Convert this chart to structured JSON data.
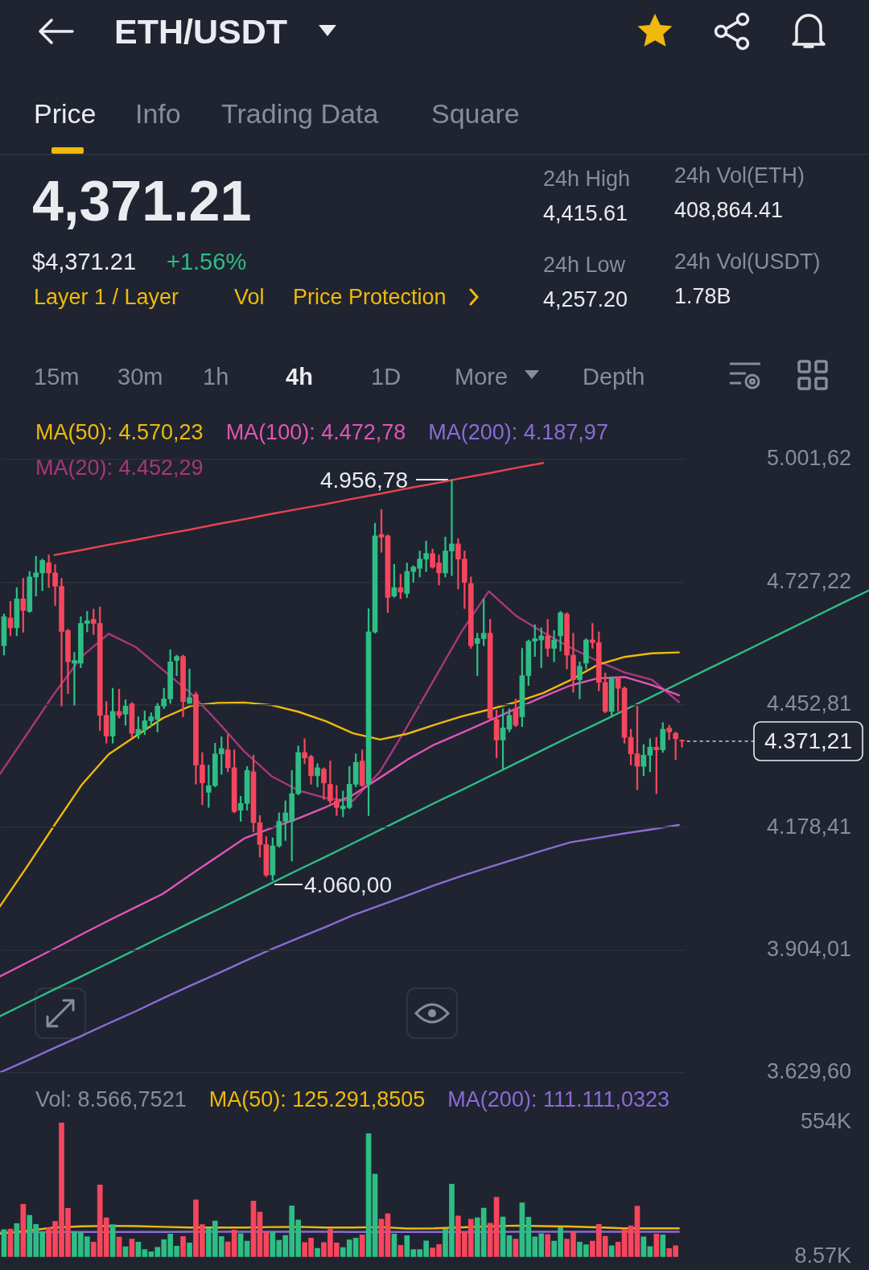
{
  "chart_data": [
    {
      "type": "candlestick",
      "title": "ETH/USDT",
      "annotations": [
        "Price",
        "Info",
        "Trading Data",
        "Square",
        "4,371.21",
        "$4,371.21",
        "+1.56%",
        "Layer 1 / Layer",
        "Vol",
        "Price Protection",
        "24h High",
        "4,415.61",
        "24h Low",
        "4,257.20",
        "24h Vol(ETH)",
        "408,864.41",
        "24h Vol(USDT)",
        "1.78B",
        "15m",
        "30m",
        "1h",
        "4h",
        "1D",
        "More",
        "Depth",
        "4.956,78",
        "4.060,00"
      ],
      "categories": [
        null,
        null,
        null,
        null,
        null,
        null,
        null,
        null,
        null,
        null,
        null,
        null,
        null,
        null,
        null,
        null,
        null,
        null,
        null,
        null,
        null,
        null,
        null,
        null,
        null,
        null,
        null,
        null,
        null,
        null,
        null,
        null,
        null,
        null,
        null,
        null,
        null,
        null,
        null,
        null,
        null,
        null,
        null,
        null,
        null,
        null,
        null,
        null,
        null,
        null,
        null,
        null,
        null,
        null,
        null,
        null,
        null,
        null,
        null,
        null,
        null,
        null,
        null,
        null,
        null,
        null,
        null,
        null,
        null,
        null,
        null,
        null,
        null,
        null,
        null,
        null,
        null,
        null,
        null,
        null,
        null,
        null,
        null,
        null,
        null,
        null,
        null,
        null,
        null,
        null,
        null,
        null,
        null,
        null,
        null,
        null,
        null,
        null,
        null,
        null,
        null,
        null,
        null,
        null,
        null,
        null,
        null
      ],
      "series": [
        {
          "ohlc": [
            [
              4585,
              4656,
              4564,
              4650
            ],
            [
              4647,
              4684,
              4607,
              4625
            ],
            [
              4625,
              4715,
              4607,
              4690
            ],
            [
              4690,
              4736,
              4615,
              4664
            ],
            [
              4662,
              4751,
              4659,
              4739
            ],
            [
              4739,
              4785,
              4696,
              4748
            ],
            [
              4748,
              4779,
              4708,
              4776
            ],
            [
              4771,
              4788,
              4715,
              4748
            ],
            [
              4748,
              4767,
              4675,
              4718
            ],
            [
              4718,
              4736,
              4450,
              4617
            ],
            [
              4619,
              4622,
              4478,
              4549
            ],
            [
              4546,
              4570,
              4452,
              4552
            ],
            [
              4546,
              4650,
              4536,
              4635
            ],
            [
              4635,
              4662,
              4616,
              4641
            ],
            [
              4644,
              4667,
              4610,
              4635
            ],
            [
              4635,
              4672,
              4395,
              4429
            ],
            [
              4429,
              4460,
              4367,
              4383
            ],
            [
              4383,
              4490,
              4367,
              4438
            ],
            [
              4438,
              4488,
              4423,
              4429
            ],
            [
              4432,
              4464,
              4407,
              4450
            ],
            [
              4455,
              4458,
              4380,
              4389
            ],
            [
              4386,
              4426,
              4377,
              4398
            ],
            [
              4398,
              4439,
              4386,
              4417
            ],
            [
              4417,
              4435,
              4404,
              4426
            ],
            [
              4420,
              4456,
              4392,
              4450
            ],
            [
              4450,
              4490,
              4444,
              4466
            ],
            [
              4466,
              4576,
              4456,
              4549
            ],
            [
              4552,
              4564,
              4518,
              4561
            ],
            [
              4561,
              4564,
              4426,
              4460
            ],
            [
              4456,
              4533,
              4456,
              4469
            ],
            [
              4476,
              4481,
              4275,
              4318
            ],
            [
              4318,
              4346,
              4229,
              4278
            ],
            [
              4257,
              4318,
              4223,
              4272
            ],
            [
              4272,
              4367,
              4269,
              4343
            ],
            [
              4343,
              4381,
              4297,
              4355
            ],
            [
              4352,
              4386,
              4303,
              4312
            ],
            [
              4312,
              4352,
              4211,
              4214
            ],
            [
              4217,
              4248,
              4192,
              4232
            ],
            [
              4232,
              4315,
              4217,
              4306
            ],
            [
              4303,
              4340,
              4168,
              4189
            ],
            [
              4189,
              4205,
              4112,
              4140
            ],
            [
              4140,
              4158,
              4068,
              4072
            ],
            [
              4072,
              4155,
              4060.0,
              4137
            ],
            [
              4137,
              4211,
              4134,
              4192
            ],
            [
              4192,
              4238,
              4149,
              4211
            ],
            [
              4192,
              4306,
              4103,
              4254
            ],
            [
              4254,
              4361,
              4251,
              4346
            ],
            [
              4346,
              4377,
              4321,
              4334
            ],
            [
              4337,
              4340,
              4275,
              4294
            ],
            [
              4294,
              4321,
              4269,
              4312
            ],
            [
              4309,
              4312,
              4241,
              4278
            ],
            [
              4275,
              4327,
              4232,
              4238
            ],
            [
              4238,
              4272,
              4205,
              4223
            ],
            [
              4220,
              4260,
              4202,
              4226
            ],
            [
              4223,
              4315,
              4220,
              4275
            ],
            [
              4275,
              4343,
              4269,
              4324
            ],
            [
              4327,
              4352,
              4270,
              4272
            ],
            [
              4275,
              4668,
              4205,
              4616
            ],
            [
              4616,
              4859,
              4613,
              4831
            ],
            [
              4834,
              4890,
              4794,
              4828
            ],
            [
              4831,
              4833,
              4659,
              4693
            ],
            [
              4696,
              4767,
              4693,
              4715
            ],
            [
              4715,
              4745,
              4690,
              4705
            ],
            [
              4702,
              4770,
              4693,
              4751
            ],
            [
              4751,
              4764,
              4727,
              4761
            ],
            [
              4758,
              4797,
              4739,
              4779
            ],
            [
              4779,
              4819,
              4751,
              4791
            ],
            [
              4791,
              4801,
              4758,
              4761
            ],
            [
              4770,
              4788,
              4721,
              4748
            ],
            [
              4748,
              4828,
              4739,
              4797
            ],
            [
              4797,
              4956.78,
              4742,
              4813
            ],
            [
              4813,
              4825,
              4712,
              4779
            ],
            [
              4779,
              4797,
              4668,
              4727
            ],
            [
              4724,
              4739,
              4579,
              4585
            ],
            [
              4590,
              4613,
              4518,
              4601
            ],
            [
              4601,
              4690,
              4585,
              4613
            ],
            [
              4613,
              4644,
              4417,
              4423
            ],
            [
              4420,
              4441,
              4334,
              4374
            ],
            [
              4374,
              4444,
              4309,
              4401
            ],
            [
              4398,
              4444,
              4392,
              4429
            ],
            [
              4444,
              4466,
              4404,
              4407
            ],
            [
              4426,
              4579,
              4404,
              4518
            ],
            [
              4518,
              4598,
              4496,
              4595
            ],
            [
              4595,
              4632,
              4561,
              4601
            ],
            [
              4598,
              4625,
              4536,
              4607
            ],
            [
              4607,
              4644,
              4561,
              4579
            ],
            [
              4579,
              4619,
              4549,
              4598
            ],
            [
              4607,
              4662,
              4573,
              4659
            ],
            [
              4656,
              4659,
              4533,
              4564
            ],
            [
              4564,
              4613,
              4481,
              4509
            ],
            [
              4509,
              4549,
              4466,
              4539
            ],
            [
              4546,
              4601,
              4533,
              4598
            ],
            [
              4598,
              4635,
              4579,
              4592
            ],
            [
              4592,
              4616,
              4484,
              4503
            ],
            [
              4503,
              4524,
              4435,
              4438
            ],
            [
              4438,
              4515,
              4429,
              4512
            ],
            [
              4512,
              4515,
              4438,
              4490
            ],
            [
              4490,
              4493,
              4367,
              4380
            ],
            [
              4380,
              4398,
              4318,
              4343
            ],
            [
              4343,
              4450,
              4263,
              4315
            ],
            [
              4315,
              4364,
              4294,
              4340
            ],
            [
              4340,
              4377,
              4303,
              4358
            ],
            [
              4358,
              4380,
              4254,
              4352
            ],
            [
              4352,
              4413,
              4346,
              4398
            ],
            [
              4401,
              4407,
              4374,
              4392
            ],
            [
              4389,
              4392,
              4330,
              4377
            ],
            [
              4372,
              4374,
              4358,
              4371.21
            ]
          ],
          "colors": [
            "#2ebd85",
            "#f6465d",
            "#2ebd85",
            "#f6465d",
            "#2ebd85",
            "#2ebd85",
            "#2ebd85",
            "#f6465d",
            "#f6465d",
            "#f6465d",
            "#f6465d",
            "#2ebd85",
            "#2ebd85",
            "#2ebd85",
            "#f6465d",
            "#f6465d",
            "#f6465d",
            "#2ebd85",
            "#f6465d",
            "#2ebd85",
            "#f6465d",
            "#2ebd85",
            "#2ebd85",
            "#2ebd85",
            "#2ebd85",
            "#2ebd85",
            "#2ebd85",
            "#2ebd85",
            "#f6465d",
            "#2ebd85",
            "#f6465d",
            "#f6465d",
            "#2ebd85",
            "#2ebd85",
            "#2ebd85",
            "#f6465d",
            "#f6465d",
            "#2ebd85",
            "#2ebd85",
            "#f6465d",
            "#f6465d",
            "#f6465d",
            "#2ebd85",
            "#2ebd85",
            "#2ebd85",
            "#2ebd85",
            "#2ebd85",
            "#f6465d",
            "#f6465d",
            "#2ebd85",
            "#f6465d",
            "#f6465d",
            "#f6465d",
            "#2ebd85",
            "#2ebd85",
            "#2ebd85",
            "#f6465d",
            "#2ebd85",
            "#2ebd85",
            "#f6465d",
            "#f6465d",
            "#2ebd85",
            "#f6465d",
            "#2ebd85",
            "#2ebd85",
            "#2ebd85",
            "#2ebd85",
            "#f6465d",
            "#f6465d",
            "#2ebd85",
            "#2ebd85",
            "#f6465d",
            "#f6465d",
            "#f6465d",
            "#2ebd85",
            "#2ebd85",
            "#f6465d",
            "#f6465d",
            "#2ebd85",
            "#2ebd85",
            "#f6465d",
            "#2ebd85",
            "#2ebd85",
            "#2ebd85",
            "#2ebd85",
            "#f6465d",
            "#2ebd85",
            "#2ebd85",
            "#f6465d",
            "#f6465d",
            "#2ebd85",
            "#2ebd85",
            "#f6465d",
            "#f6465d",
            "#f6465d",
            "#2ebd85",
            "#f6465d",
            "#f6465d",
            "#f6465d",
            "#f6465d",
            "#2ebd85",
            "#2ebd85",
            "#f6465d",
            "#2ebd85",
            "#f6465d",
            "#f6465d",
            "#f6465d"
          ]
        }
      ],
      "ref_lines": [
        {
          "axis": "y",
          "value": 4371.21,
          "label": "4.371,21",
          "color": "#c8ccd2",
          "line_style": "dashed"
        }
      ],
      "ylim": [
        3629.6,
        5001.62
      ],
      "yticks": [
        {
          "value": 5001.62,
          "label": "5.001,62"
        },
        {
          "value": 4727.22,
          "label": "4.727,22"
        },
        {
          "value": 4452.81,
          "label": "4.452,81"
        },
        {
          "value": 4178.41,
          "label": "4.178,41"
        },
        {
          "value": 3904.01,
          "label": "3.904,01"
        },
        {
          "value": 3629.6,
          "label": "3.629,60"
        }
      ],
      "tick_labels": "y",
      "grid": "y"
    },
    {
      "type": "line",
      "series": [
        {
          "name": "MA(50): 4.570,23",
          "color": "#f0b90b",
          "values": [
            4002,
            4091,
            4183,
            4273,
            4342,
            4383,
            4423,
            4450,
            4457,
            4458,
            4452,
            4437,
            4416,
            4389,
            4375,
            4388,
            4408,
            4427,
            4442,
            4459,
            4479,
            4508,
            4542,
            4560,
            4568,
            4570,
            null,
            null,
            null,
            null,
            null,
            null,
            null
          ]
        },
        {
          "name": "MA(100): 4.472,78",
          "color": "#e255b6",
          "values": [
            3845,
            3876,
            3907,
            3939,
            3970,
            4000,
            4030,
            4072,
            4113,
            4154,
            4177,
            4199,
            4224,
            4251,
            4290,
            4330,
            4364,
            4390,
            4417,
            4444,
            4471,
            4496,
            4512,
            4515,
            4497,
            4474,
            null,
            null,
            null,
            null,
            null,
            null,
            null
          ]
        },
        {
          "name": "MA(200): 4.187,97",
          "color": "#8c6bd6",
          "values": [
            3630,
            3657,
            3685,
            3712,
            3740,
            3767,
            3796,
            3824,
            3851,
            3879,
            3906,
            3931,
            3956,
            3982,
            4004,
            4026,
            4049,
            4070,
            4089,
            4108,
            4127,
            4145,
            4155,
            4165,
            4174,
            4184,
            null,
            null,
            null,
            null,
            null,
            null,
            null
          ]
        },
        {
          "name": "MA(20): 4.452,29",
          "color": "#a8377a",
          "values": [
            4298,
            4388,
            4478,
            4560,
            4612,
            4582,
            4531,
            4480,
            4416,
            4348,
            4293,
            4261,
            4244,
            4238,
            4304,
            4405,
            4511,
            4617,
            4707,
            4652,
            4615,
            4581,
            4551,
            4525,
            4509,
            4459,
            null,
            null,
            null,
            null,
            null,
            null,
            null
          ]
        },
        {
          "color": "#e8434f",
          "values": [
            null,
            null,
            4788,
            4799,
            4811,
            4822,
            4834,
            4845,
            4857,
            4868,
            4880,
            4891,
            4902,
            4914,
            4925,
            4937,
            4948,
            4960,
            4971,
            4983,
            4994,
            null,
            null,
            null,
            null,
            null,
            null,
            null,
            null,
            null,
            null,
            null,
            null
          ]
        },
        {
          "color": "#2fbd85",
          "values": [
            3756,
            3786,
            3816,
            3845,
            3875,
            3905,
            3935,
            3965,
            3994,
            4024,
            4054,
            4084,
            4113,
            4143,
            4173,
            4203,
            4233,
            4262,
            4292,
            4322,
            4352,
            4382,
            4411,
            4441,
            4471,
            4501,
            4531,
            4560,
            4590,
            4620,
            4650,
            4680,
            4709
          ]
        }
      ],
      "categories": [
        null,
        null,
        null,
        null,
        null,
        null,
        null,
        null,
        null,
        null,
        null,
        null,
        null,
        null,
        null,
        null,
        null,
        null,
        null,
        null,
        null,
        null,
        null,
        null,
        null,
        null,
        null,
        null,
        null,
        null,
        null,
        null,
        null
      ],
      "ylim": [
        3629.6,
        5001.62
      ],
      "tick_labels": false
    },
    {
      "type": "bar",
      "categories": [
        null,
        null,
        null,
        null,
        null,
        null,
        null,
        null,
        null,
        null,
        null,
        null,
        null,
        null,
        null,
        null,
        null,
        null,
        null,
        null,
        null,
        null,
        null,
        null,
        null,
        null,
        null,
        null,
        null,
        null,
        null,
        null,
        null,
        null,
        null,
        null,
        null,
        null,
        null,
        null,
        null,
        null,
        null,
        null,
        null,
        null,
        null,
        null,
        null,
        null,
        null,
        null,
        null,
        null,
        null,
        null,
        null,
        null,
        null,
        null,
        null,
        null,
        null,
        null,
        null,
        null,
        null,
        null,
        null,
        null,
        null,
        null,
        null,
        null,
        null,
        null,
        null,
        null,
        null,
        null,
        null,
        null,
        null,
        null,
        null,
        null,
        null,
        null,
        null,
        null,
        null,
        null,
        null,
        null,
        null,
        null,
        null,
        null,
        null,
        null,
        null,
        null,
        null,
        null,
        null,
        null,
        null
      ],
      "values": [
        120,
        122,
        144,
        223,
        178,
        141,
        111,
        126,
        153,
        554,
        206,
        111,
        107,
        91,
        69,
        301,
        168,
        140,
        89,
        50,
        81,
        69,
        39,
        30,
        48,
        79,
        102,
        53,
        92,
        66,
        241,
        140,
        125,
        155,
        92,
        70,
        118,
        103,
        73,
        236,
        191,
        109,
        109,
        76,
        96,
        216,
        159,
        67,
        85,
        44,
        67,
        122,
        66,
        47,
        78,
        85,
        98,
        510,
        345,
        162,
        184,
        102,
        56,
        95,
        39,
        39,
        74,
        45,
        59,
        122,
        304,
        175,
        109,
        162,
        168,
        207,
        146,
        251,
        171,
        95,
        81,
        228,
        170,
        90,
        103,
        100,
        73,
        128,
        81,
        109,
        69,
        58,
        73,
        141,
        93,
        54,
        69,
        120,
        135,
        215,
        90,
        51,
        102,
        98,
        43,
        54,
        null
      ],
      "colors": [
        "#2ebd85",
        "#f6465d",
        "#2ebd85",
        "#f6465d",
        "#2ebd85",
        "#2ebd85",
        "#2ebd85",
        "#f6465d",
        "#f6465d",
        "#f6465d",
        "#f6465d",
        "#2ebd85",
        "#2ebd85",
        "#2ebd85",
        "#f6465d",
        "#f6465d",
        "#f6465d",
        "#2ebd85",
        "#f6465d",
        "#2ebd85",
        "#f6465d",
        "#2ebd85",
        "#2ebd85",
        "#2ebd85",
        "#2ebd85",
        "#2ebd85",
        "#2ebd85",
        "#2ebd85",
        "#f6465d",
        "#2ebd85",
        "#f6465d",
        "#f6465d",
        "#2ebd85",
        "#2ebd85",
        "#2ebd85",
        "#f6465d",
        "#f6465d",
        "#2ebd85",
        "#2ebd85",
        "#f6465d",
        "#f6465d",
        "#f6465d",
        "#2ebd85",
        "#2ebd85",
        "#2ebd85",
        "#2ebd85",
        "#2ebd85",
        "#f6465d",
        "#f6465d",
        "#2ebd85",
        "#f6465d",
        "#f6465d",
        "#f6465d",
        "#2ebd85",
        "#2ebd85",
        "#2ebd85",
        "#f6465d",
        "#2ebd85",
        "#2ebd85",
        "#f6465d",
        "#f6465d",
        "#2ebd85",
        "#f6465d",
        "#2ebd85",
        "#2ebd85",
        "#2ebd85",
        "#2ebd85",
        "#f6465d",
        "#f6465d",
        "#2ebd85",
        "#2ebd85",
        "#f6465d",
        "#f6465d",
        "#f6465d",
        "#2ebd85",
        "#2ebd85",
        "#f6465d",
        "#f6465d",
        "#2ebd85",
        "#2ebd85",
        "#f6465d",
        "#2ebd85",
        "#2ebd85",
        "#2ebd85",
        "#2ebd85",
        "#f6465d",
        "#2ebd85",
        "#2ebd85",
        "#f6465d",
        "#f6465d",
        "#2ebd85",
        "#2ebd85",
        "#f6465d",
        "#f6465d",
        "#f6465d",
        "#2ebd85",
        "#f6465d",
        "#f6465d",
        "#f6465d",
        "#f6465d",
        "#2ebd85",
        "#2ebd85",
        "#f6465d",
        "#2ebd85",
        "#f6465d",
        "#f6465d",
        "#f6465d"
      ],
      "ylim": [
        8.57,
        554
      ],
      "yticks": [
        {
          "value": 554,
          "label": "554K"
        },
        {
          "value": 8.57,
          "label": "8.57K"
        }
      ],
      "tick_labels": "y"
    },
    {
      "type": "line",
      "annotations": [
        "Vol: 8.566,7521"
      ],
      "series": [
        {
          "name": "MA(50): 125.291,8505",
          "color": "#f0b90b",
          "values": [
            103,
            115,
            128,
            133,
            135,
            134,
            131,
            128,
            128,
            128,
            130,
            131,
            128,
            128,
            130,
            124,
            125,
            129,
            133,
            136,
            134,
            132,
            129,
            125,
            125,
            125,
            null,
            null,
            null,
            null,
            null,
            null,
            null
          ]
        },
        {
          "name": "MA(200): 111.111,0323",
          "color": "#8c6bd6",
          "values": [
            109,
            109,
            110,
            110,
            110,
            110,
            110,
            111,
            111,
            111,
            111,
            111,
            111,
            110,
            110,
            110,
            110,
            110,
            110,
            111,
            111,
            111,
            111,
            111,
            111,
            111,
            null,
            null,
            null,
            null,
            null,
            null,
            null
          ]
        }
      ],
      "categories": [
        null,
        null,
        null,
        null,
        null,
        null,
        null,
        null,
        null,
        null,
        null,
        null,
        null,
        null,
        null,
        null,
        null,
        null,
        null,
        null,
        null,
        null,
        null,
        null,
        null,
        null,
        null,
        null,
        null,
        null,
        null,
        null,
        null
      ],
      "ylim": [
        8.57,
        554
      ],
      "tick_labels": false
    }
  ]
}
